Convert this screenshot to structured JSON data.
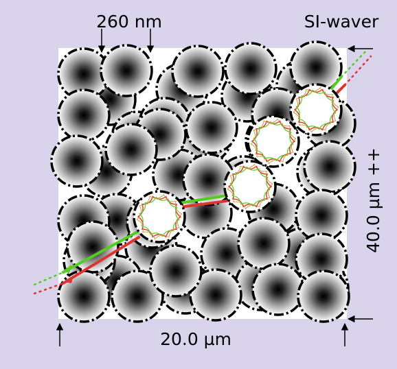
{
  "labels": {
    "top_scale": "260 nm",
    "corner_title": "SI-waver",
    "side_scale": "40.0 µm ++",
    "bottom_scale": "20.0 µm"
  },
  "colors": {
    "background": "#d9d4ec",
    "panel": "#ffffff",
    "ray_green": "#55cc22",
    "ray_red": "#dd3333",
    "sphere_core": "#000000",
    "sphere_edge": "#ffffff"
  }
}
